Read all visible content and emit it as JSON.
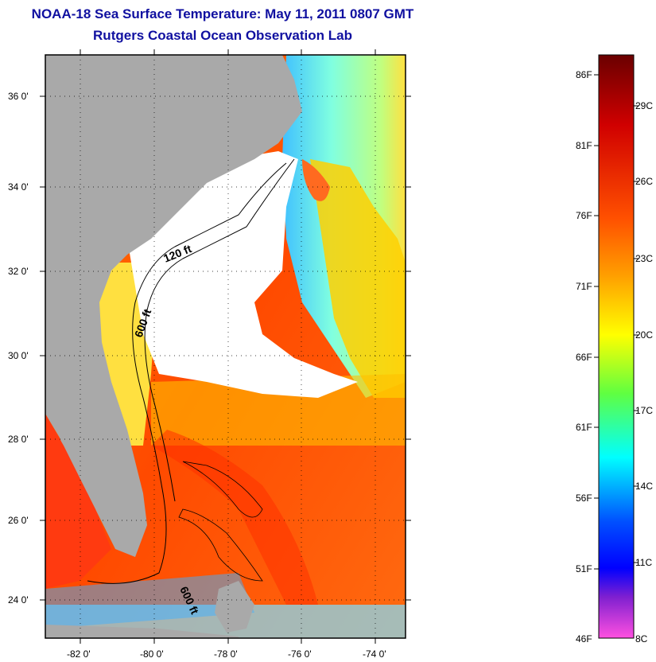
{
  "title": "NOAA-18 Sea Surface Temperature:  May 11, 2011 0807 GMT",
  "subtitle": "Rutgers Coastal Ocean Observation Lab",
  "map": {
    "lat_labels": [
      "36 0'",
      "34 0'",
      "32 0'",
      "30 0'",
      "28 0'",
      "26 0'",
      "24 0'"
    ],
    "lon_labels": [
      "-82 0'",
      "-80 0'",
      "-78 0'",
      "-76 0'",
      "-74 0'"
    ],
    "contours": {
      "c120": "120 ft",
      "c600a": "600 ft",
      "c600b": "600 ft"
    }
  },
  "colorbar": {
    "f_labels": [
      "86F",
      "81F",
      "76F",
      "71F",
      "66F",
      "61F",
      "56F",
      "51F",
      "46F"
    ],
    "c_labels": [
      "29C",
      "26C",
      "23C",
      "20C",
      "17C",
      "14C",
      "11C",
      "8C"
    ],
    "colors": {
      "top": "#7a0000",
      "red": "#ff1800",
      "orange": "#ff8000",
      "yellow": "#ffff00",
      "green": "#40ff40",
      "cyan": "#00ffff",
      "blue": "#0000ff",
      "purple": "#a020c0",
      "magenta": "#ff40ff"
    }
  },
  "land_color": "#a9a9a9",
  "cloud_color": "#ffffff"
}
